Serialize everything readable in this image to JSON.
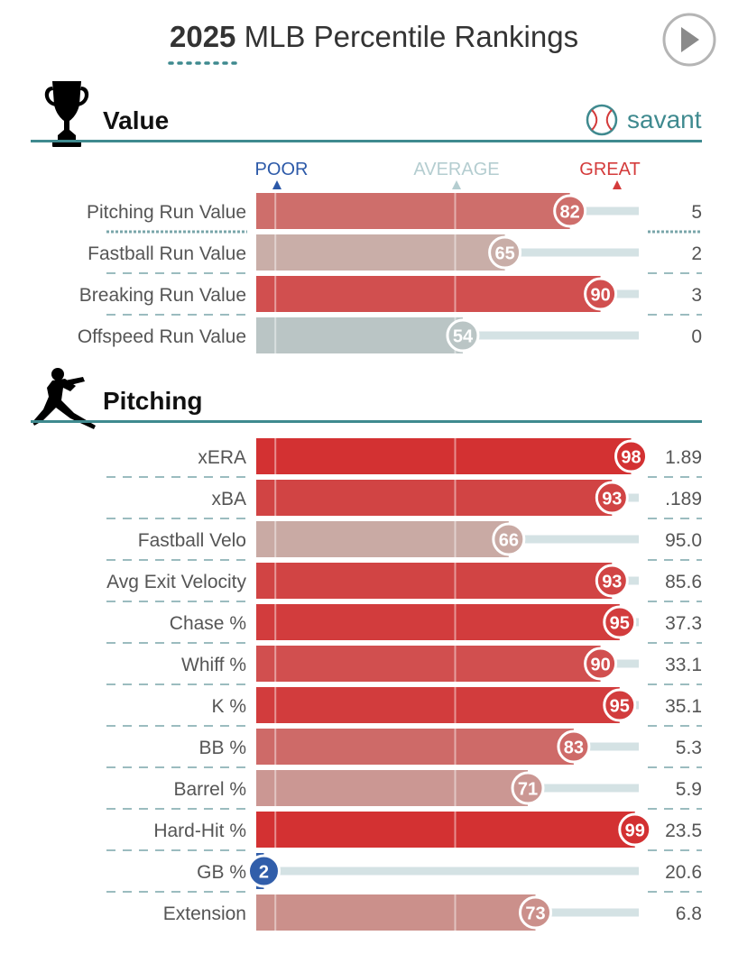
{
  "header": {
    "title_year": "2025",
    "title_rest": " MLB Percentile Rankings",
    "play_button_icon": "play-icon"
  },
  "brand": {
    "name": "savant",
    "icon": "baseball-icon"
  },
  "scale": {
    "poor": "POOR",
    "average": "AVERAGE",
    "great": "GREAT",
    "poor_color": "#2c59a8",
    "average_color": "#b4cdd0",
    "great_color": "#d43b3b"
  },
  "colors": {
    "section_rule": "#3f8a8f",
    "track": "#d4e2e4",
    "dash": "#7aa6aa"
  },
  "chart_data": [
    {
      "type": "bar",
      "title": "Value",
      "icon": "trophy-icon",
      "xlim": [
        0,
        100
      ],
      "categories": [
        "Pitching Run Value",
        "Fastball Run Value",
        "Breaking Run Value",
        "Offspeed Run Value"
      ],
      "percentiles": [
        82,
        65,
        90,
        54
      ],
      "values": [
        "5",
        "2",
        "3",
        "0"
      ]
    },
    {
      "type": "bar",
      "title": "Pitching",
      "icon": "pitcher-icon",
      "xlim": [
        0,
        100
      ],
      "categories": [
        "xERA",
        "xBA",
        "Fastball Velo",
        "Avg Exit Velocity",
        "Chase %",
        "Whiff %",
        "K %",
        "BB %",
        "Barrel %",
        "Hard-Hit %",
        "GB %",
        "Extension"
      ],
      "percentiles": [
        98,
        93,
        66,
        93,
        95,
        90,
        95,
        83,
        71,
        99,
        2,
        73
      ],
      "values": [
        "1.89",
        ".189",
        "95.0",
        "85.6",
        "37.3",
        "33.1",
        "35.1",
        "5.3",
        "5.9",
        "23.5",
        "20.6",
        "6.8"
      ]
    }
  ]
}
